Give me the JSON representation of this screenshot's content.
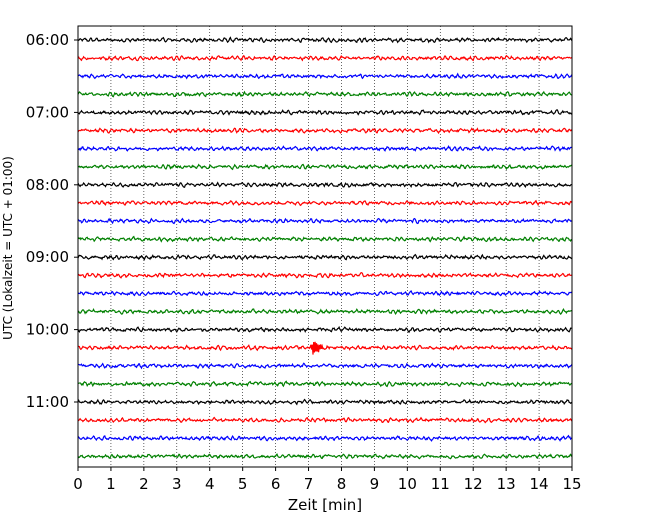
{
  "chart_data": {
    "type": "line",
    "title": "",
    "xlabel": "Zeit  [min]",
    "ylabel": "UTC (Lokalzeit = UTC + 01:00)",
    "xlim": [
      0,
      15
    ],
    "x_ticks": [
      "0",
      "1",
      "2",
      "3",
      "4",
      "5",
      "6",
      "7",
      "8",
      "9",
      "10",
      "11",
      "12",
      "13",
      "14",
      "15"
    ],
    "row_start_hour": 6,
    "row_minutes": 15,
    "row_count": 24,
    "y_tick_labels": [
      "06:00",
      "07:00",
      "08:00",
      "09:00",
      "10:00",
      "11:00"
    ],
    "y_tick_rows": [
      0,
      4,
      8,
      12,
      16,
      20
    ],
    "trace_colors": [
      "#000000",
      "#ff0000",
      "#0000ff",
      "#008000"
    ],
    "grid": "vertical dotted lines at each minute",
    "legend": "none",
    "events": [
      {
        "row_label": "10:15",
        "row_index": 17,
        "time_min": 7.05,
        "amplitude_rel": 1.0
      }
    ],
    "background_noise_amplitude_rel": 0.12
  }
}
